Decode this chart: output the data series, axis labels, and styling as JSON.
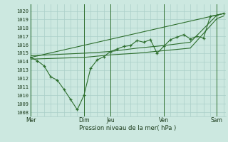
{
  "background_color": "#cce8e0",
  "grid_color": "#aacfc8",
  "line_color": "#2d6e2d",
  "marker_color": "#2d6e2d",
  "ylabel_ticks": [
    1008,
    1009,
    1010,
    1011,
    1012,
    1013,
    1014,
    1015,
    1016,
    1017,
    1018,
    1019,
    1020
  ],
  "ylim": [
    1007.5,
    1020.8
  ],
  "xlabel": "Pression niveau de la mer( hPa )",
  "day_labels": [
    "Mer",
    "Dim",
    "Jeu",
    "Ven",
    "Sam"
  ],
  "day_positions": [
    0,
    48,
    72,
    120,
    168
  ],
  "xlim": [
    -1,
    176
  ],
  "series1": {
    "x": [
      0,
      6,
      12,
      18,
      24,
      30,
      36,
      42,
      48,
      54,
      60,
      66,
      72,
      78,
      84,
      90,
      96,
      102,
      108,
      114,
      120,
      126,
      132,
      138,
      144,
      150,
      156,
      162,
      168,
      174
    ],
    "y": [
      1014.5,
      1014.1,
      1013.5,
      1012.2,
      1011.8,
      1010.7,
      1009.5,
      1008.3,
      1010.0,
      1013.2,
      1014.2,
      1014.6,
      1015.2,
      1015.5,
      1015.8,
      1015.9,
      1016.5,
      1016.3,
      1016.6,
      1015.0,
      1015.8,
      1016.6,
      1016.9,
      1017.2,
      1016.7,
      1017.0,
      1016.8,
      1019.4,
      1019.5,
      1019.7
    ]
  },
  "series2": {
    "x": [
      0,
      48,
      72,
      96,
      120,
      144,
      168,
      174
    ],
    "y": [
      1014.7,
      1015.0,
      1015.2,
      1015.6,
      1015.9,
      1016.3,
      1019.5,
      1019.7
    ]
  },
  "series3": {
    "x": [
      0,
      48,
      72,
      96,
      120,
      144,
      168,
      174
    ],
    "y": [
      1014.3,
      1014.5,
      1014.8,
      1015.0,
      1015.3,
      1015.6,
      1019.1,
      1019.4
    ]
  },
  "series4": {
    "x": [
      0,
      174
    ],
    "y": [
      1014.5,
      1019.7
    ]
  }
}
